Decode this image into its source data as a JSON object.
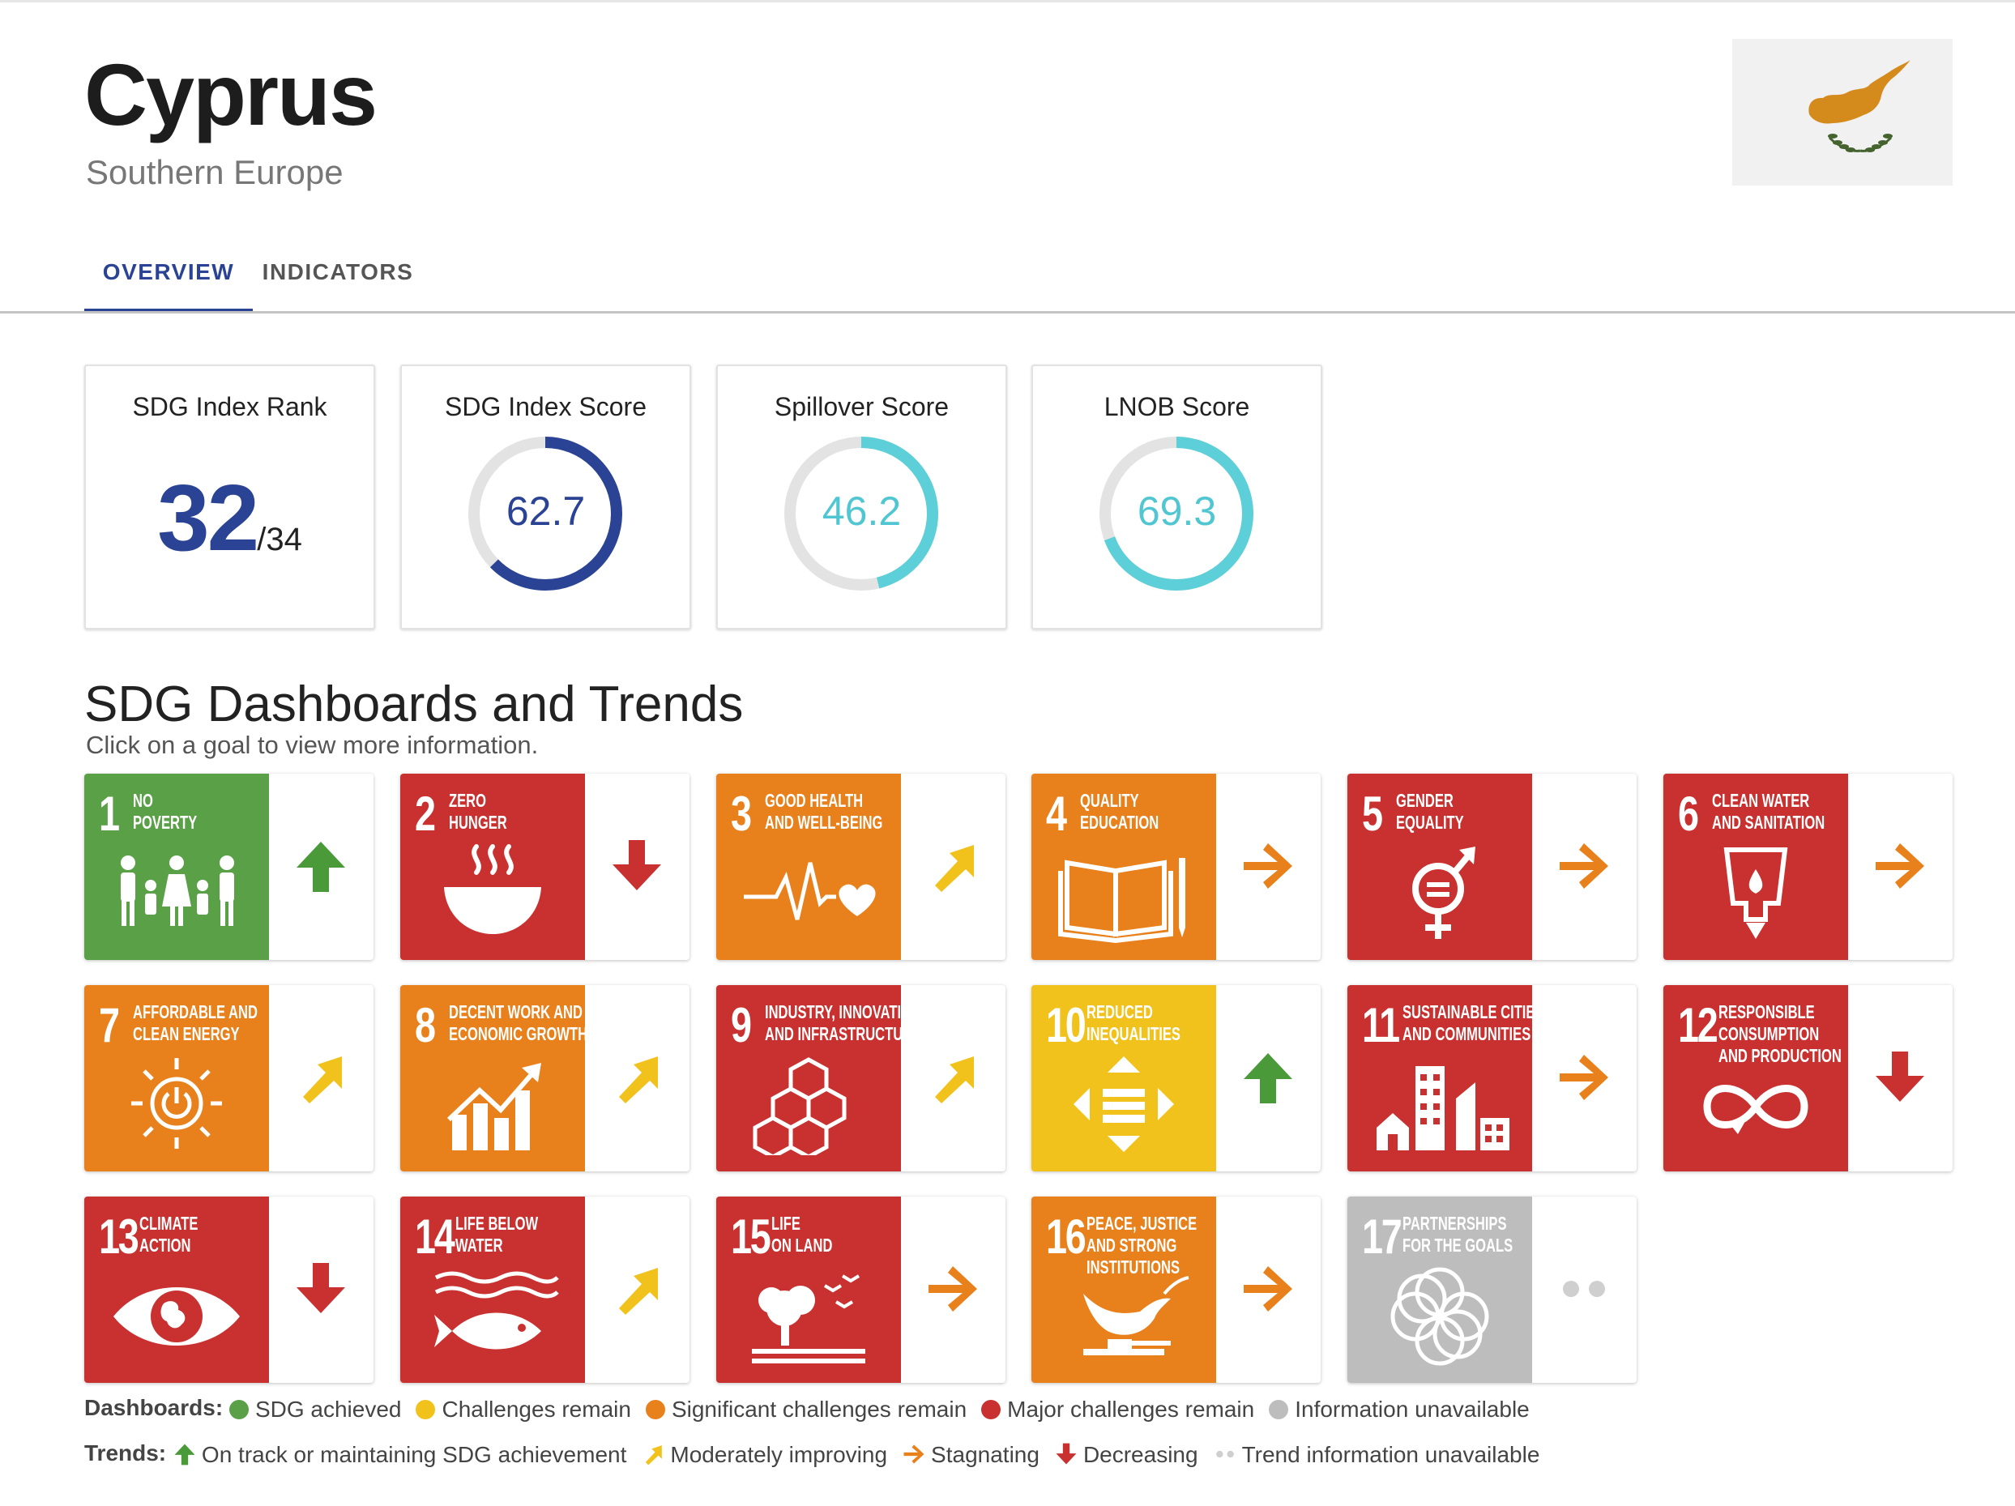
{
  "header": {
    "country": "Cyprus",
    "region": "Southern Europe"
  },
  "tabs": [
    {
      "label": "OVERVIEW",
      "active": true
    },
    {
      "label": "INDICATORS",
      "active": false
    }
  ],
  "scores": {
    "rank": {
      "label": "SDG Index Rank",
      "value": "32",
      "of": "/34"
    },
    "index": {
      "label": "SDG Index Score",
      "value": "62.7",
      "fraction": 0.627,
      "color": "#2a4395"
    },
    "spillover": {
      "label": "Spillover Score",
      "value": "46.2",
      "fraction": 0.462,
      "color": "#5ccfd8"
    },
    "lnob": {
      "label": "LNOB Score",
      "value": "69.3",
      "fraction": 0.693,
      "color": "#5ccfd8"
    }
  },
  "section": {
    "title": "SDG Dashboards and Trends",
    "subtitle": "Click on a goal to view more information."
  },
  "goals": [
    {
      "num": "1",
      "name1": "No",
      "name2": "Poverty",
      "name3": "",
      "dashboard": "SDG achieved",
      "color": "#5aa046",
      "icon": "family-icon",
      "trend": "up"
    },
    {
      "num": "2",
      "name1": "Zero",
      "name2": "Hunger",
      "name3": "",
      "dashboard": "Major challenges remain",
      "color": "#c8312f",
      "icon": "bowl-icon",
      "trend": "down"
    },
    {
      "num": "3",
      "name1": "Good Health",
      "name2": "and Well-Being",
      "name3": "",
      "dashboard": "Significant challenges remain",
      "color": "#e8801b",
      "icon": "heartbeat-icon",
      "trend": "diag"
    },
    {
      "num": "4",
      "name1": "Quality",
      "name2": "Education",
      "name3": "",
      "dashboard": "Significant challenges remain",
      "color": "#e8801b",
      "icon": "book-icon",
      "trend": "right"
    },
    {
      "num": "5",
      "name1": "Gender",
      "name2": "Equality",
      "name3": "",
      "dashboard": "Major challenges remain",
      "color": "#c8312f",
      "icon": "gender-icon",
      "trend": "right"
    },
    {
      "num": "6",
      "name1": "Clean Water",
      "name2": "and Sanitation",
      "name3": "",
      "dashboard": "Major challenges remain",
      "color": "#c8312f",
      "icon": "water-icon",
      "trend": "right"
    },
    {
      "num": "7",
      "name1": "Affordable and",
      "name2": "Clean Energy",
      "name3": "",
      "dashboard": "Significant challenges remain",
      "color": "#e8801b",
      "icon": "sun-power-icon",
      "trend": "diag"
    },
    {
      "num": "8",
      "name1": "Decent Work and",
      "name2": "Economic Growth",
      "name3": "",
      "dashboard": "Significant challenges remain",
      "color": "#e8801b",
      "icon": "growth-chart-icon",
      "trend": "diag"
    },
    {
      "num": "9",
      "name1": "Industry, Innovation",
      "name2": "and Infrastructure",
      "name3": "",
      "dashboard": "Major challenges remain",
      "color": "#c8312f",
      "icon": "cubes-icon",
      "trend": "diag"
    },
    {
      "num": "10",
      "name1": "Reduced",
      "name2": "Inequalities",
      "name3": "",
      "dashboard": "Challenges remain",
      "color": "#f2c21c",
      "icon": "equality-arrows-icon",
      "trend": "up"
    },
    {
      "num": "11",
      "name1": "Sustainable Cities",
      "name2": "and Communities",
      "name3": "",
      "dashboard": "Major challenges remain",
      "color": "#c8312f",
      "icon": "city-icon",
      "trend": "right"
    },
    {
      "num": "12",
      "name1": "Responsible",
      "name2": "Consumption",
      "name3": "and Production",
      "dashboard": "Major challenges remain",
      "color": "#c8312f",
      "icon": "infinity-icon",
      "trend": "down"
    },
    {
      "num": "13",
      "name1": "Climate",
      "name2": "Action",
      "name3": "",
      "dashboard": "Major challenges remain",
      "color": "#c8312f",
      "icon": "eye-globe-icon",
      "trend": "down"
    },
    {
      "num": "14",
      "name1": "Life Below",
      "name2": "Water",
      "name3": "",
      "dashboard": "Major challenges remain",
      "color": "#c8312f",
      "icon": "fish-icon",
      "trend": "diag"
    },
    {
      "num": "15",
      "name1": "Life",
      "name2": "on Land",
      "name3": "",
      "dashboard": "Major challenges remain",
      "color": "#c8312f",
      "icon": "tree-birds-icon",
      "trend": "right"
    },
    {
      "num": "16",
      "name1": "Peace, Justice",
      "name2": "and Strong",
      "name3": "Institutions",
      "dashboard": "Significant challenges remain",
      "color": "#e8801b",
      "icon": "dove-gavel-icon",
      "trend": "right"
    },
    {
      "num": "17",
      "name1": "Partnerships",
      "name2": "for the Goals",
      "name3": "",
      "dashboard": "Information unavailable",
      "color": "#bdbdbd",
      "icon": "rings-icon",
      "trend": "none"
    }
  ],
  "trend_colors": {
    "up": "#4a9a3a",
    "down": "#c8312f",
    "diag": "#f2c21c",
    "right": "#e8801b",
    "none": "#cfcfcf"
  },
  "legend": {
    "dashboards_label": "Dashboards:",
    "dashboards": [
      {
        "label": "SDG achieved",
        "color": "#5aa046"
      },
      {
        "label": "Challenges remain",
        "color": "#f2c21c"
      },
      {
        "label": "Significant challenges remain",
        "color": "#e8801b"
      },
      {
        "label": "Major challenges remain",
        "color": "#c8312f"
      },
      {
        "label": "Information unavailable",
        "color": "#bdbdbd"
      }
    ],
    "trends_label": "Trends:",
    "trends": [
      {
        "label": "On track or maintaining SDG achievement",
        "icon": "up"
      },
      {
        "label": "Moderately improving",
        "icon": "diag"
      },
      {
        "label": "Stagnating",
        "icon": "right"
      },
      {
        "label": "Decreasing",
        "icon": "down"
      },
      {
        "label": "Trend information unavailable",
        "icon": "none"
      }
    ]
  }
}
